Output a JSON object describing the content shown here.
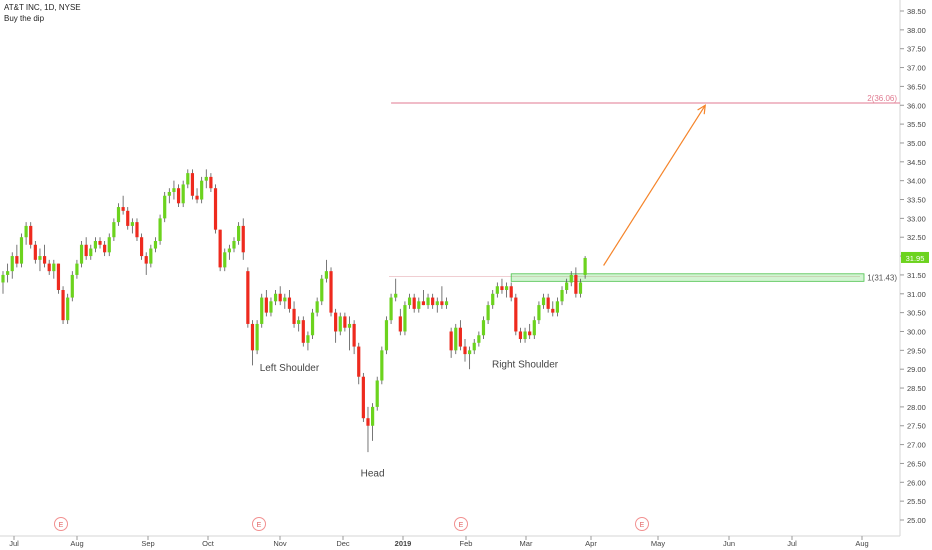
{
  "header": {
    "title": "AT&T INC, 1D, NYSE",
    "subtitle": "Buy the dip"
  },
  "chart_data": {
    "type": "candlestick",
    "ylim": [
      24.8,
      38.65
    ],
    "y_ticks": [
      "25.00",
      "25.50",
      "26.00",
      "26.50",
      "27.00",
      "27.50",
      "28.00",
      "28.50",
      "29.00",
      "29.50",
      "30.00",
      "30.50",
      "31.00",
      "31.50",
      "32.00",
      "32.50",
      "33.00",
      "33.50",
      "34.00",
      "34.50",
      "35.00",
      "35.50",
      "36.00",
      "36.50",
      "37.00",
      "37.50",
      "38.00",
      "38.50"
    ],
    "x_ticks": [
      "Jul",
      "Aug",
      "Sep",
      "Oct",
      "Nov",
      "Dec",
      "2019",
      "Feb",
      "Mar",
      "Apr",
      "May",
      "Jun",
      "Jul",
      "Aug"
    ],
    "x_tick_bold": "2019",
    "last_price_label": "31.95",
    "colors": {
      "up": "#6cd31e",
      "down": "#ee2a1e",
      "arrow": "#f5842a",
      "target": "#e07a90",
      "zone": "#7ee07e"
    },
    "series": [
      {
        "d": 0,
        "o": 31.3,
        "h": 31.6,
        "l": 31.0,
        "c": 31.5
      },
      {
        "d": 1,
        "o": 31.5,
        "h": 31.8,
        "l": 31.3,
        "c": 31.6
      },
      {
        "d": 2,
        "o": 31.6,
        "h": 32.1,
        "l": 31.4,
        "c": 32.0
      },
      {
        "d": 3,
        "o": 32.0,
        "h": 32.3,
        "l": 31.7,
        "c": 31.8
      },
      {
        "d": 4,
        "o": 31.8,
        "h": 32.6,
        "l": 31.7,
        "c": 32.5
      },
      {
        "d": 5,
        "o": 32.5,
        "h": 32.9,
        "l": 32.3,
        "c": 32.8
      },
      {
        "d": 6,
        "o": 32.8,
        "h": 32.9,
        "l": 32.2,
        "c": 32.3
      },
      {
        "d": 7,
        "o": 32.3,
        "h": 32.4,
        "l": 31.8,
        "c": 31.9
      },
      {
        "d": 8,
        "o": 31.9,
        "h": 32.2,
        "l": 31.6,
        "c": 32.0
      },
      {
        "d": 9,
        "o": 32.0,
        "h": 32.3,
        "l": 31.7,
        "c": 31.8
      },
      {
        "d": 10,
        "o": 31.8,
        "h": 31.9,
        "l": 31.5,
        "c": 31.6
      },
      {
        "d": 11,
        "o": 31.6,
        "h": 31.9,
        "l": 31.4,
        "c": 31.8
      },
      {
        "d": 12,
        "o": 31.8,
        "h": 31.8,
        "l": 31.0,
        "c": 31.1
      },
      {
        "d": 13,
        "o": 31.1,
        "h": 31.2,
        "l": 30.2,
        "c": 30.3
      },
      {
        "d": 14,
        "o": 30.3,
        "h": 31.0,
        "l": 30.2,
        "c": 30.9
      },
      {
        "d": 15,
        "o": 30.9,
        "h": 31.6,
        "l": 30.8,
        "c": 31.5
      },
      {
        "d": 16,
        "o": 31.5,
        "h": 31.9,
        "l": 31.4,
        "c": 31.8
      },
      {
        "d": 17,
        "o": 31.8,
        "h": 32.4,
        "l": 31.7,
        "c": 32.3
      },
      {
        "d": 18,
        "o": 32.3,
        "h": 32.5,
        "l": 31.9,
        "c": 32.0
      },
      {
        "d": 19,
        "o": 32.0,
        "h": 32.3,
        "l": 31.9,
        "c": 32.2
      },
      {
        "d": 20,
        "o": 32.2,
        "h": 32.5,
        "l": 32.1,
        "c": 32.4
      },
      {
        "d": 21,
        "o": 32.4,
        "h": 32.5,
        "l": 32.2,
        "c": 32.3
      },
      {
        "d": 22,
        "o": 32.3,
        "h": 32.4,
        "l": 32.0,
        "c": 32.1
      },
      {
        "d": 23,
        "o": 32.1,
        "h": 32.6,
        "l": 32.0,
        "c": 32.5
      },
      {
        "d": 24,
        "o": 32.5,
        "h": 33.0,
        "l": 32.4,
        "c": 32.9
      },
      {
        "d": 25,
        "o": 32.9,
        "h": 33.4,
        "l": 32.8,
        "c": 33.3
      },
      {
        "d": 26,
        "o": 33.3,
        "h": 33.6,
        "l": 33.1,
        "c": 33.2
      },
      {
        "d": 27,
        "o": 33.2,
        "h": 33.3,
        "l": 32.7,
        "c": 32.8
      },
      {
        "d": 28,
        "o": 32.8,
        "h": 33.0,
        "l": 32.6,
        "c": 32.9
      },
      {
        "d": 29,
        "o": 32.9,
        "h": 33.0,
        "l": 32.4,
        "c": 32.5
      },
      {
        "d": 30,
        "o": 32.5,
        "h": 32.6,
        "l": 31.9,
        "c": 32.0
      },
      {
        "d": 31,
        "o": 32.0,
        "h": 32.1,
        "l": 31.5,
        "c": 31.8
      },
      {
        "d": 32,
        "o": 31.8,
        "h": 32.3,
        "l": 31.7,
        "c": 32.2
      },
      {
        "d": 33,
        "o": 32.2,
        "h": 32.5,
        "l": 32.1,
        "c": 32.4
      },
      {
        "d": 34,
        "o": 32.4,
        "h": 33.1,
        "l": 32.3,
        "c": 33.0
      },
      {
        "d": 35,
        "o": 33.0,
        "h": 33.7,
        "l": 32.9,
        "c": 33.6
      },
      {
        "d": 36,
        "o": 33.6,
        "h": 33.8,
        "l": 33.4,
        "c": 33.7
      },
      {
        "d": 37,
        "o": 33.7,
        "h": 34.0,
        "l": 33.5,
        "c": 33.8
      },
      {
        "d": 38,
        "o": 33.8,
        "h": 33.9,
        "l": 33.3,
        "c": 33.4
      },
      {
        "d": 39,
        "o": 33.4,
        "h": 34.0,
        "l": 33.3,
        "c": 33.9
      },
      {
        "d": 40,
        "o": 33.9,
        "h": 34.3,
        "l": 33.8,
        "c": 34.2
      },
      {
        "d": 41,
        "o": 34.2,
        "h": 34.3,
        "l": 33.5,
        "c": 33.6
      },
      {
        "d": 42,
        "o": 33.6,
        "h": 33.8,
        "l": 33.4,
        "c": 33.5
      },
      {
        "d": 43,
        "o": 33.5,
        "h": 34.1,
        "l": 33.4,
        "c": 34.0
      },
      {
        "d": 44,
        "o": 34.0,
        "h": 34.3,
        "l": 33.8,
        "c": 34.1
      },
      {
        "d": 45,
        "o": 34.1,
        "h": 34.2,
        "l": 33.7,
        "c": 33.8
      },
      {
        "d": 46,
        "o": 33.8,
        "h": 33.9,
        "l": 32.6,
        "c": 32.7
      },
      {
        "d": 47,
        "o": 32.7,
        "h": 32.7,
        "l": 31.6,
        "c": 31.7
      },
      {
        "d": 48,
        "o": 31.7,
        "h": 32.2,
        "l": 31.6,
        "c": 32.1
      },
      {
        "d": 49,
        "o": 32.1,
        "h": 32.3,
        "l": 31.9,
        "c": 32.2
      },
      {
        "d": 50,
        "o": 32.2,
        "h": 32.5,
        "l": 32.1,
        "c": 32.4
      },
      {
        "d": 51,
        "o": 32.4,
        "h": 32.9,
        "l": 32.3,
        "c": 32.8
      },
      {
        "d": 52,
        "o": 32.8,
        "h": 33.0,
        "l": 31.9,
        "c": 32.1
      },
      {
        "d": 53,
        "o": 31.6,
        "h": 31.7,
        "l": 30.1,
        "c": 30.2
      },
      {
        "d": 54,
        "o": 30.2,
        "h": 30.3,
        "l": 29.1,
        "c": 29.5
      },
      {
        "d": 55,
        "o": 29.5,
        "h": 30.3,
        "l": 29.4,
        "c": 30.2
      },
      {
        "d": 56,
        "o": 30.2,
        "h": 31.0,
        "l": 30.1,
        "c": 30.9
      },
      {
        "d": 57,
        "o": 30.9,
        "h": 31.1,
        "l": 30.4,
        "c": 30.5
      },
      {
        "d": 58,
        "o": 30.5,
        "h": 30.9,
        "l": 30.4,
        "c": 30.8
      },
      {
        "d": 59,
        "o": 30.8,
        "h": 31.1,
        "l": 30.7,
        "c": 31.0
      },
      {
        "d": 60,
        "o": 31.0,
        "h": 31.2,
        "l": 30.7,
        "c": 30.8
      },
      {
        "d": 61,
        "o": 30.8,
        "h": 31.0,
        "l": 30.6,
        "c": 30.9
      },
      {
        "d": 62,
        "o": 30.9,
        "h": 31.1,
        "l": 30.5,
        "c": 30.6
      },
      {
        "d": 63,
        "o": 30.6,
        "h": 30.8,
        "l": 30.1,
        "c": 30.2
      },
      {
        "d": 64,
        "o": 30.2,
        "h": 30.4,
        "l": 30.0,
        "c": 30.3
      },
      {
        "d": 65,
        "o": 30.3,
        "h": 30.4,
        "l": 29.6,
        "c": 29.7
      },
      {
        "d": 66,
        "o": 29.7,
        "h": 30.0,
        "l": 29.5,
        "c": 29.9
      },
      {
        "d": 67,
        "o": 29.9,
        "h": 30.6,
        "l": 29.8,
        "c": 30.5
      },
      {
        "d": 68,
        "o": 30.5,
        "h": 30.9,
        "l": 30.4,
        "c": 30.8
      },
      {
        "d": 69,
        "o": 30.8,
        "h": 31.5,
        "l": 30.7,
        "c": 31.4
      },
      {
        "d": 70,
        "o": 31.4,
        "h": 31.9,
        "l": 31.3,
        "c": 31.6
      },
      {
        "d": 71,
        "o": 31.6,
        "h": 31.7,
        "l": 30.4,
        "c": 30.5
      },
      {
        "d": 72,
        "o": 30.5,
        "h": 30.6,
        "l": 29.7,
        "c": 30.0
      },
      {
        "d": 73,
        "o": 30.0,
        "h": 30.5,
        "l": 29.9,
        "c": 30.4
      },
      {
        "d": 74,
        "o": 30.4,
        "h": 30.5,
        "l": 30.0,
        "c": 30.1
      },
      {
        "d": 75,
        "o": 30.1,
        "h": 30.4,
        "l": 29.5,
        "c": 30.2
      },
      {
        "d": 76,
        "o": 30.2,
        "h": 30.3,
        "l": 29.4,
        "c": 29.6
      },
      {
        "d": 77,
        "o": 29.6,
        "h": 29.7,
        "l": 28.6,
        "c": 28.8
      },
      {
        "d": 78,
        "o": 28.8,
        "h": 28.9,
        "l": 27.6,
        "c": 27.7
      },
      {
        "d": 79,
        "o": 27.7,
        "h": 28.0,
        "l": 26.8,
        "c": 27.5
      },
      {
        "d": 80,
        "o": 27.5,
        "h": 28.1,
        "l": 27.1,
        "c": 28.0
      },
      {
        "d": 81,
        "o": 28.0,
        "h": 28.8,
        "l": 27.9,
        "c": 28.7
      },
      {
        "d": 82,
        "o": 28.7,
        "h": 29.6,
        "l": 28.6,
        "c": 29.5
      },
      {
        "d": 83,
        "o": 29.5,
        "h": 30.4,
        "l": 29.4,
        "c": 30.3
      },
      {
        "d": 84,
        "o": 30.3,
        "h": 31.0,
        "l": 30.2,
        "c": 30.9
      },
      {
        "d": 85,
        "o": 30.9,
        "h": 31.4,
        "l": 30.8,
        "c": 31.0
      },
      {
        "d": 86,
        "o": 30.4,
        "h": 30.6,
        "l": 29.9,
        "c": 30.0
      },
      {
        "d": 87,
        "o": 30.0,
        "h": 30.8,
        "l": 29.9,
        "c": 30.7
      },
      {
        "d": 88,
        "o": 30.7,
        "h": 31.0,
        "l": 30.6,
        "c": 30.9
      },
      {
        "d": 89,
        "o": 30.9,
        "h": 31.0,
        "l": 30.5,
        "c": 30.6
      },
      {
        "d": 90,
        "o": 30.6,
        "h": 30.9,
        "l": 30.5,
        "c": 30.8
      },
      {
        "d": 91,
        "o": 30.8,
        "h": 31.1,
        "l": 30.7,
        "c": 30.7
      },
      {
        "d": 92,
        "o": 30.7,
        "h": 31.0,
        "l": 30.6,
        "c": 30.9
      },
      {
        "d": 93,
        "o": 30.9,
        "h": 31.0,
        "l": 30.6,
        "c": 30.7
      },
      {
        "d": 94,
        "o": 30.7,
        "h": 30.9,
        "l": 30.5,
        "c": 30.8
      },
      {
        "d": 95,
        "o": 30.8,
        "h": 31.2,
        "l": 30.6,
        "c": 30.7
      },
      {
        "d": 96,
        "o": 30.7,
        "h": 30.9,
        "l": 30.6,
        "c": 30.8
      },
      {
        "d": 97,
        "o": 30.0,
        "h": 30.1,
        "l": 29.3,
        "c": 29.5
      },
      {
        "d": 98,
        "o": 29.5,
        "h": 30.2,
        "l": 29.4,
        "c": 30.1
      },
      {
        "d": 99,
        "o": 30.1,
        "h": 30.3,
        "l": 29.5,
        "c": 29.6
      },
      {
        "d": 100,
        "o": 29.6,
        "h": 29.8,
        "l": 29.2,
        "c": 29.4
      },
      {
        "d": 101,
        "o": 29.4,
        "h": 29.6,
        "l": 29.0,
        "c": 29.5
      },
      {
        "d": 102,
        "o": 29.5,
        "h": 29.8,
        "l": 29.4,
        "c": 29.7
      },
      {
        "d": 103,
        "o": 29.7,
        "h": 30.0,
        "l": 29.6,
        "c": 29.9
      },
      {
        "d": 104,
        "o": 29.9,
        "h": 30.4,
        "l": 29.8,
        "c": 30.3
      },
      {
        "d": 105,
        "o": 30.3,
        "h": 30.8,
        "l": 30.2,
        "c": 30.7
      },
      {
        "d": 106,
        "o": 30.7,
        "h": 31.1,
        "l": 30.6,
        "c": 31.0
      },
      {
        "d": 107,
        "o": 31.0,
        "h": 31.3,
        "l": 30.9,
        "c": 31.2
      },
      {
        "d": 108,
        "o": 31.2,
        "h": 31.4,
        "l": 31.0,
        "c": 31.1
      },
      {
        "d": 109,
        "o": 31.1,
        "h": 31.3,
        "l": 30.9,
        "c": 31.2
      },
      {
        "d": 110,
        "o": 31.2,
        "h": 31.3,
        "l": 30.8,
        "c": 30.9
      },
      {
        "d": 111,
        "o": 30.9,
        "h": 31.0,
        "l": 29.9,
        "c": 30.0
      },
      {
        "d": 112,
        "o": 30.0,
        "h": 30.1,
        "l": 29.7,
        "c": 29.8
      },
      {
        "d": 113,
        "o": 29.8,
        "h": 30.1,
        "l": 29.7,
        "c": 30.0
      },
      {
        "d": 114,
        "o": 30.0,
        "h": 30.2,
        "l": 29.8,
        "c": 29.9
      },
      {
        "d": 115,
        "o": 29.9,
        "h": 30.4,
        "l": 29.8,
        "c": 30.3
      },
      {
        "d": 116,
        "o": 30.3,
        "h": 30.8,
        "l": 30.2,
        "c": 30.7
      },
      {
        "d": 117,
        "o": 30.7,
        "h": 31.0,
        "l": 30.6,
        "c": 30.9
      },
      {
        "d": 118,
        "o": 30.9,
        "h": 31.0,
        "l": 30.5,
        "c": 30.6
      },
      {
        "d": 119,
        "o": 30.6,
        "h": 30.8,
        "l": 30.4,
        "c": 30.5
      },
      {
        "d": 120,
        "o": 30.5,
        "h": 30.9,
        "l": 30.4,
        "c": 30.8
      },
      {
        "d": 121,
        "o": 30.8,
        "h": 31.2,
        "l": 30.7,
        "c": 31.1
      },
      {
        "d": 122,
        "o": 31.1,
        "h": 31.4,
        "l": 31.0,
        "c": 31.3
      },
      {
        "d": 123,
        "o": 31.3,
        "h": 31.6,
        "l": 31.2,
        "c": 31.5
      },
      {
        "d": 124,
        "o": 31.5,
        "h": 31.7,
        "l": 30.9,
        "c": 31.0
      },
      {
        "d": 125,
        "o": 31.0,
        "h": 31.4,
        "l": 30.9,
        "c": 31.3
      },
      {
        "d": 126,
        "o": 31.5,
        "h": 32.0,
        "l": 31.4,
        "c": 31.95
      }
    ],
    "annotations": [
      {
        "text": "Left Shoulder",
        "day": 62,
        "price": 28.95
      },
      {
        "text": "Head",
        "day": 80,
        "price": 26.15
      },
      {
        "text": "Right Shoulder",
        "day": 113,
        "price": 29.05
      }
    ],
    "zone": {
      "label": "1(31.43)",
      "price_low": 31.33,
      "price_high": 31.53,
      "day_start": 110
    },
    "target": {
      "label": "2(36.06)",
      "price": 36.06,
      "day_start": 84
    },
    "arrow": {
      "from_day": 130,
      "from_price": 31.75,
      "to_day": 152,
      "to_price": 36.0
    },
    "earnings": [
      {
        "label": "E",
        "x_date": "Jul 26"
      },
      {
        "label": "E",
        "x_date": "Oct 24"
      },
      {
        "label": "E",
        "x_date": "Jan 30"
      },
      {
        "label": "E",
        "x_date": "Apr 24"
      }
    ]
  }
}
